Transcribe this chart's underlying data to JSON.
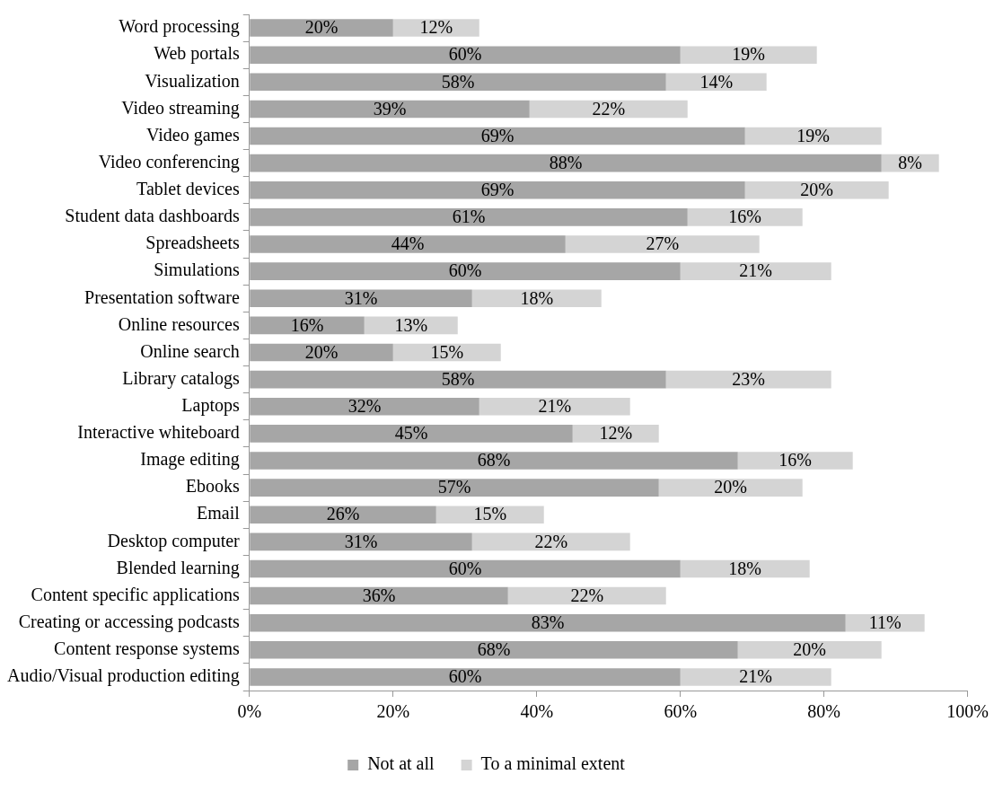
{
  "chart_data": {
    "type": "bar",
    "orientation": "horizontal",
    "stacked": true,
    "grid": false,
    "legend": "bottom",
    "categories": [
      "Word processing",
      "Web portals",
      "Visualization",
      "Video streaming",
      "Video games",
      "Video conferencing",
      "Tablet devices",
      "Student data dashboards",
      "Spreadsheets",
      "Simulations",
      "Presentation software",
      "Online resources",
      "Online search",
      "Library catalogs",
      "Laptops",
      "Interactive whiteboard",
      "Image editing",
      "Ebooks",
      "Email",
      "Desktop computer",
      "Blended learning",
      "Content specific applications",
      "Creating or accessing podcasts",
      "Content response systems",
      "Audio/Visual production editing"
    ],
    "series": [
      {
        "name": "Not at all",
        "color": "#a6a6a6",
        "values": [
          20,
          60,
          58,
          39,
          69,
          88,
          69,
          61,
          44,
          60,
          31,
          16,
          20,
          58,
          32,
          45,
          68,
          57,
          26,
          31,
          60,
          36,
          83,
          68,
          60
        ],
        "value_labels": [
          "20%",
          "60%",
          "58%",
          "39%",
          "69%",
          "88%",
          "69%",
          "61%",
          "44%",
          "60%",
          "31%",
          "16%",
          "20%",
          "58%",
          "32%",
          "45%",
          "68%",
          "57%",
          "26%",
          "31%",
          "60%",
          "36%",
          "83%",
          "68%",
          "60%"
        ]
      },
      {
        "name": "To a minimal extent",
        "color": "#d4d4d4",
        "values": [
          12,
          19,
          14,
          22,
          19,
          8,
          20,
          16,
          27,
          21,
          18,
          13,
          15,
          23,
          21,
          12,
          16,
          20,
          15,
          22,
          18,
          22,
          11,
          20,
          21
        ],
        "value_labels": [
          "12%",
          "19%",
          "14%",
          "22%",
          "19%",
          "8%",
          "20%",
          "16%",
          "27%",
          "21%",
          "18%",
          "13%",
          "15%",
          "23%",
          "21%",
          "12%",
          "16%",
          "20%",
          "15%",
          "22%",
          "18%",
          "22%",
          "11%",
          "20%",
          "21%"
        ]
      }
    ],
    "xlim": [
      0,
      100
    ],
    "xticks": [
      {
        "value": 0,
        "label": "0%"
      },
      {
        "value": 20,
        "label": "20%"
      },
      {
        "value": 40,
        "label": "40%"
      },
      {
        "value": 60,
        "label": "60%"
      },
      {
        "value": 80,
        "label": "80%"
      },
      {
        "value": 100,
        "label": "100%"
      }
    ]
  }
}
